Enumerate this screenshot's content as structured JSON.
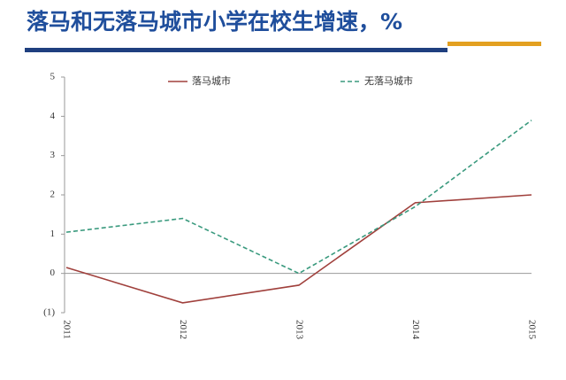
{
  "chart_data": {
    "type": "line",
    "title": "落马和无落马城市小学在校生增速，%",
    "categories": [
      "2011",
      "2012",
      "2013",
      "2014",
      "2015"
    ],
    "series": [
      {
        "name": "落马城市",
        "color": "#a0403c",
        "dash": false,
        "values": [
          0.15,
          -0.75,
          -0.3,
          1.8,
          2.0
        ]
      },
      {
        "name": "无落马城市",
        "color": "#3a9a7e",
        "dash": true,
        "values": [
          1.05,
          1.4,
          0.0,
          1.7,
          3.9
        ]
      }
    ],
    "ylim": [
      -1,
      5
    ],
    "yticks": [
      {
        "value": -1,
        "label": "(1)"
      },
      0,
      1,
      2,
      3,
      4,
      5
    ]
  }
}
